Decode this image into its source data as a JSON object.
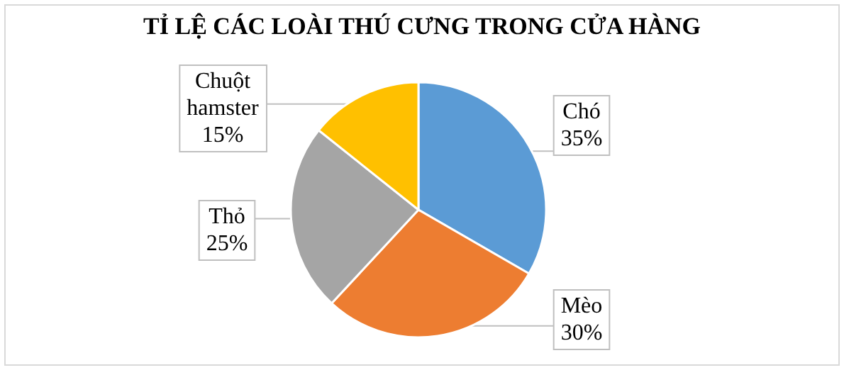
{
  "chart_data": {
    "type": "pie",
    "title": "TỈ LỆ CÁC LOÀI THÚ CƯNG TRONG CỬA HÀNG",
    "categories": [
      "Chó",
      "Mèo",
      "Thỏ",
      "Chuột hamster"
    ],
    "values": [
      35,
      30,
      25,
      15
    ],
    "value_labels": [
      "35%",
      "30%",
      "25%",
      "15%"
    ],
    "colors": [
      "#5b9bd5",
      "#ed7d31",
      "#a5a5a5",
      "#ffc000"
    ]
  }
}
